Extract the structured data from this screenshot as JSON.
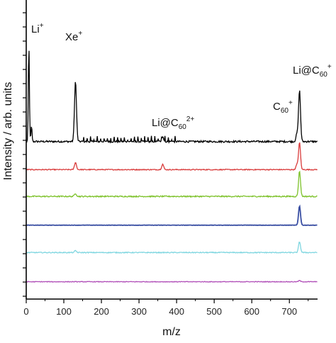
{
  "chart_data": {
    "type": "line",
    "xlabel": "m/z",
    "ylabel": "Intensity / arb. units",
    "xlim": [
      0,
      775
    ],
    "x_ticks": [
      "0",
      "100",
      "200",
      "300",
      "400",
      "500",
      "600",
      "700"
    ],
    "x_tick_values": [
      0,
      100,
      200,
      300,
      400,
      500,
      600,
      700
    ],
    "grid": false,
    "legend": "none",
    "annotations": [
      {
        "base": "Li",
        "sub": "",
        "sup": "+",
        "x": 6,
        "series": 0,
        "text": "Li+"
      },
      {
        "base": "Xe",
        "sub": "",
        "sup": "+",
        "x": 131,
        "series": 0,
        "text": "Xe+"
      },
      {
        "base": "Li@C",
        "sub": "60",
        "sup": "2+",
        "x": 363,
        "series": 0,
        "text": "Li@C60 2+"
      },
      {
        "base": "C",
        "sub": "60",
        "sup": "+",
        "x": 720,
        "series": 0,
        "text": "C60+"
      },
      {
        "base": "Li@C",
        "sub": "60",
        "sup": "+",
        "x": 727,
        "series": 0,
        "text": "Li@C60+"
      }
    ],
    "series": [
      {
        "color": "#000000",
        "peaks": [
          [
            7,
            160
          ],
          [
            14,
            25
          ],
          [
            131,
            100
          ],
          [
            363,
            8
          ],
          [
            720,
            12
          ],
          [
            727,
            85
          ]
        ],
        "noise": 3
      },
      {
        "color": "#d93b3b",
        "peaks": [
          [
            131,
            12
          ],
          [
            363,
            9
          ],
          [
            720,
            8
          ],
          [
            727,
            45
          ]
        ],
        "noise": 1.5
      },
      {
        "color": "#7dc22a",
        "peaks": [
          [
            131,
            5
          ],
          [
            727,
            42
          ]
        ],
        "noise": 2
      },
      {
        "color": "#3a4fa3",
        "peaks": [
          [
            727,
            32
          ]
        ],
        "noise": 0.6
      },
      {
        "color": "#7fd6e0",
        "peaks": [
          [
            131,
            3
          ],
          [
            727,
            18
          ]
        ],
        "noise": 1.5
      },
      {
        "color": "#b04fb8",
        "peaks": [
          [
            727,
            2
          ]
        ],
        "noise": 1
      }
    ]
  }
}
